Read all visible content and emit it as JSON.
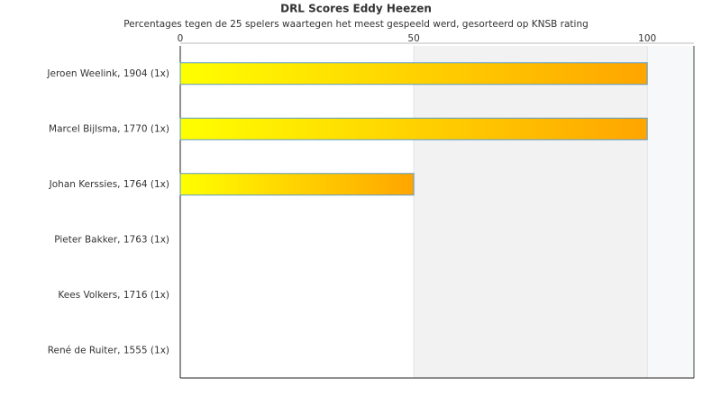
{
  "chart_data": {
    "type": "bar",
    "orientation": "horizontal",
    "title": "DRL Scores Eddy Heezen",
    "subtitle": "Percentages tegen de 25 spelers waartegen het meest gespeeld werd, gesorteerd op KNSB rating",
    "categories": [
      "Jeroen Weelink, 1904 (1x)",
      "Marcel Bijlsma, 1770 (1x)",
      "Johan Kerssies, 1764 (1x)",
      "Pieter Bakker, 1763 (1x)",
      "Kees Volkers, 1716 (1x)",
      "René de Ruiter, 1555 (1x)"
    ],
    "values": [
      100,
      100,
      50,
      0,
      0,
      0
    ],
    "colors": [
      "#ffff00",
      "#ffa500"
    ],
    "border_color": "#5b9bc9",
    "xlim": [
      0,
      110
    ],
    "xticks": [
      0,
      50,
      100
    ],
    "grid": true
  }
}
